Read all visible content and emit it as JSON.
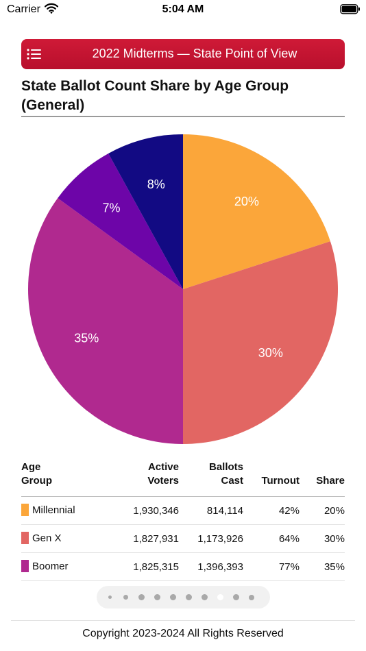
{
  "status_bar": {
    "carrier": "Carrier",
    "time": "5:04 AM"
  },
  "header": {
    "title": "2022 Midterms — State Point of View"
  },
  "chart_data": {
    "type": "pie",
    "title": "State Ballot Count Share by Age Group (General)",
    "slices": [
      {
        "label": "Millennial",
        "value": 20,
        "display": "20%",
        "color": "#fba63a"
      },
      {
        "label": "Gen X",
        "value": 30,
        "display": "30%",
        "color": "#e26663"
      },
      {
        "label": "Boomer",
        "value": 35,
        "display": "35%",
        "color": "#b0298f"
      },
      {
        "label": "",
        "value": 7,
        "display": "7%",
        "color": "#6d05a8"
      },
      {
        "label": "",
        "value": 8,
        "display": "8%",
        "color": "#120a83"
      }
    ]
  },
  "table": {
    "headers": {
      "group": [
        "Age",
        "Group"
      ],
      "active": [
        "Active",
        "Voters"
      ],
      "ballots": [
        "Ballots",
        "Cast"
      ],
      "turnout": "Turnout",
      "share": "Share"
    },
    "rows": [
      {
        "group": "Millennial",
        "color": "#fba63a",
        "active": "1,930,346",
        "ballots": "814,114",
        "turnout": "42%",
        "share": "20%"
      },
      {
        "group": "Gen X",
        "color": "#e26663",
        "active": "1,827,931",
        "ballots": "1,173,926",
        "turnout": "64%",
        "share": "30%"
      },
      {
        "group": "Boomer",
        "color": "#b0298f",
        "active": "1,825,315",
        "ballots": "1,396,393",
        "turnout": "77%",
        "share": "35%"
      }
    ]
  },
  "page_indicator": {
    "count": 10,
    "current_index": 7
  },
  "footer": {
    "copyright": "Copyright 2023-2024 All Rights Reserved"
  }
}
